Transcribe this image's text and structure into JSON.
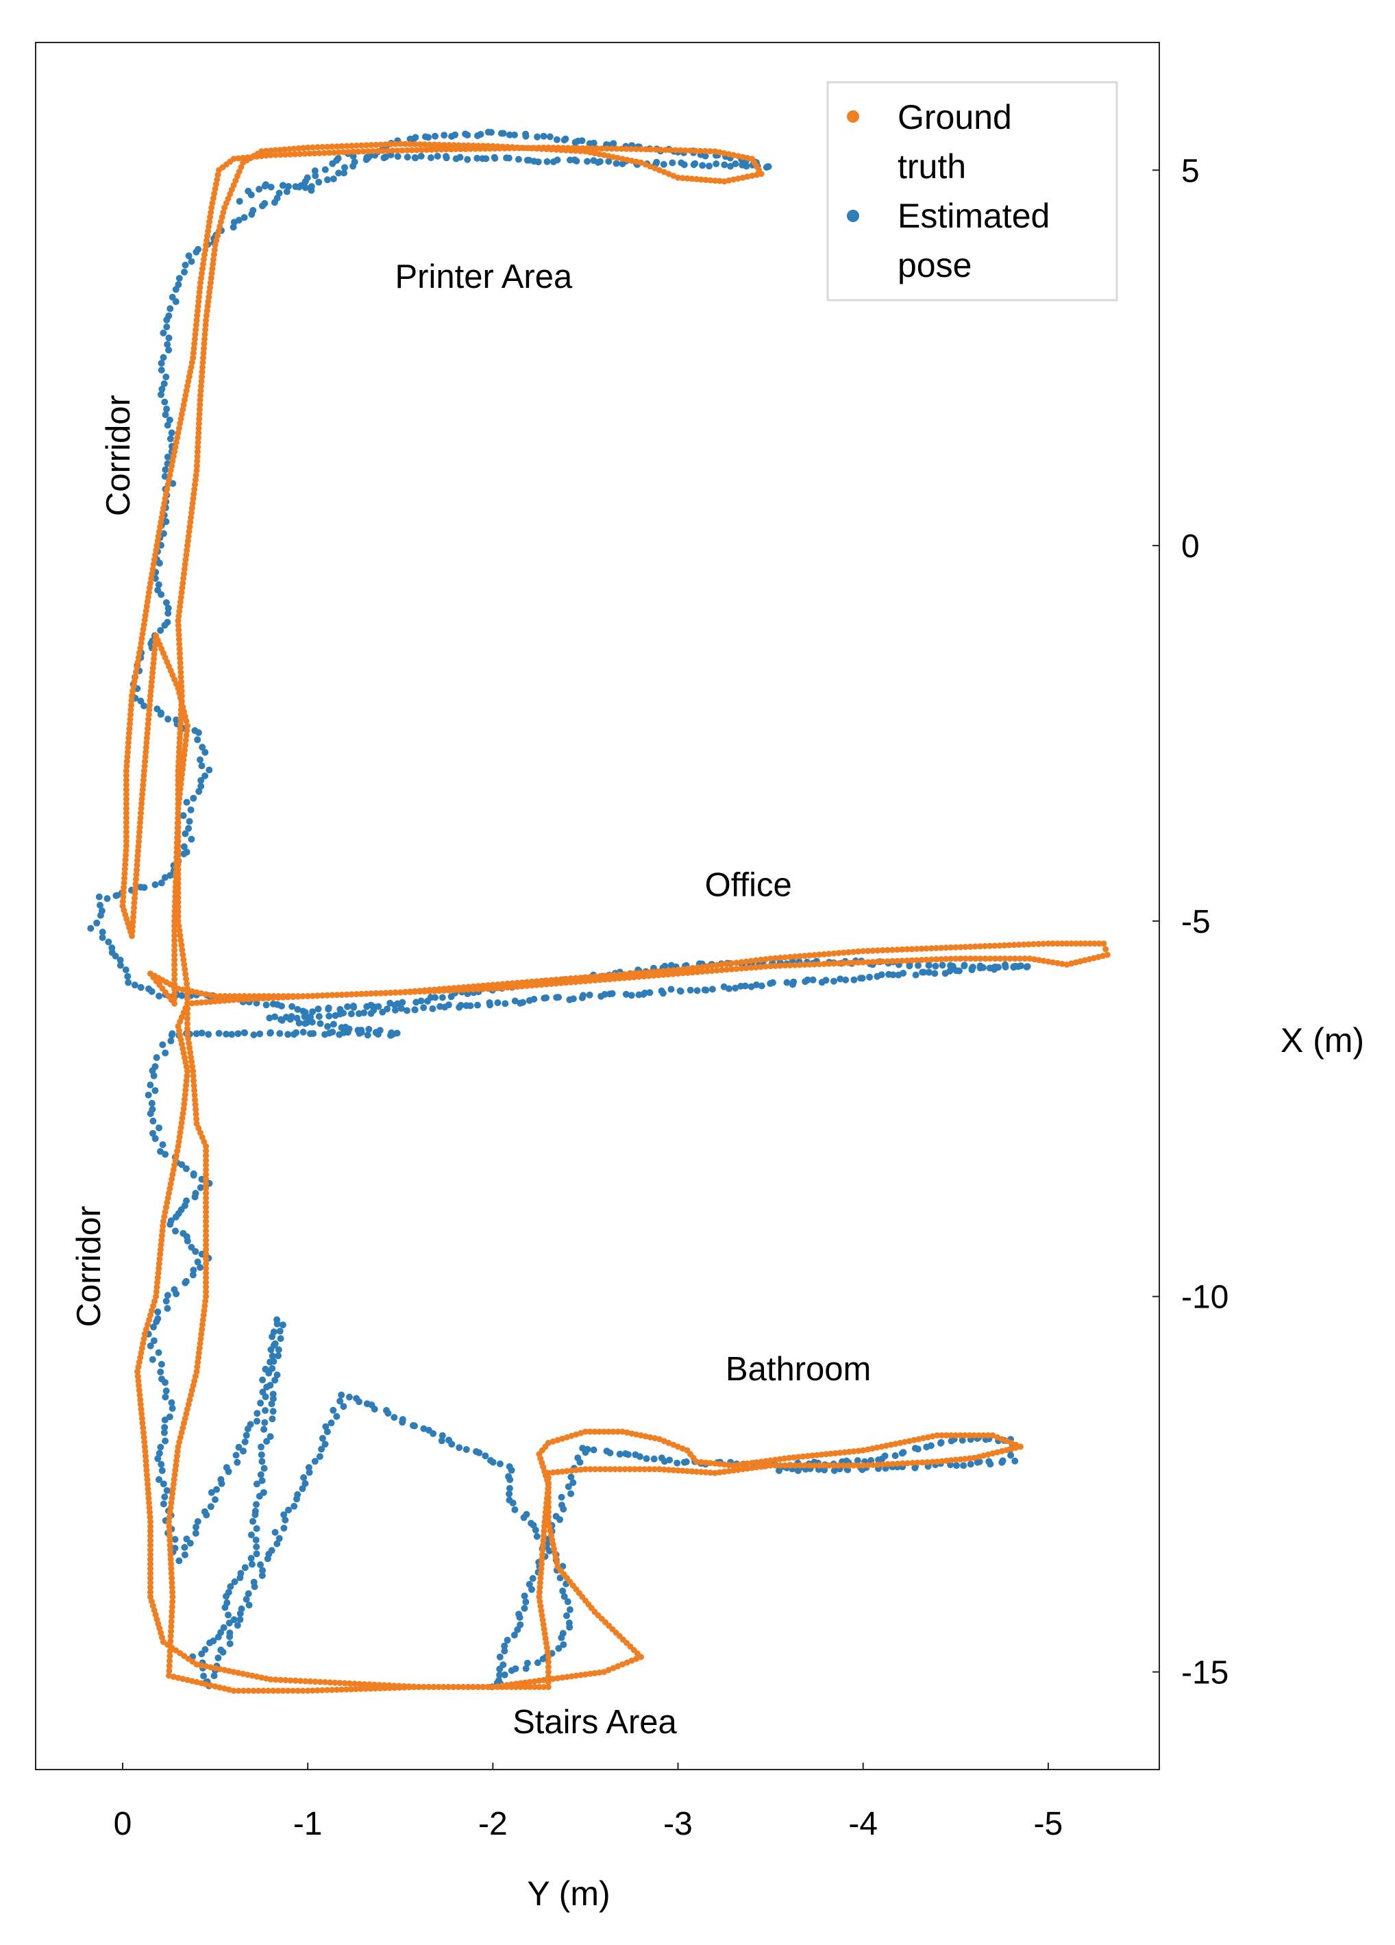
{
  "chart_data": {
    "type": "scatter",
    "title": "",
    "xlabel": "Y (m)",
    "ylabel": "X (m)",
    "xlim": [
      0.47,
      -5.6
    ],
    "ylim": [
      -16.3,
      6.7
    ],
    "x_ticks": [
      0,
      -1,
      -2,
      -3,
      -4,
      -5
    ],
    "x_tick_labels": [
      "0",
      "-1",
      "-2",
      "-3",
      "-4",
      "-5"
    ],
    "y_ticks": [
      5,
      0,
      -5,
      -10,
      -15
    ],
    "y_tick_labels": [
      "5",
      "0",
      "-5",
      "-10",
      "-15"
    ],
    "y_axis_side": "right",
    "grid": false,
    "legend_position": "top-right",
    "annotations": [
      {
        "text": "Printer Area",
        "x": -1.95,
        "y": 3.55,
        "rotation": 0
      },
      {
        "text": "Corridor",
        "x": 0.01,
        "y": 1.2,
        "rotation": -90
      },
      {
        "text": "Office",
        "x": -3.38,
        "y": -4.55,
        "rotation": 0
      },
      {
        "text": "Corridor",
        "x": 0.17,
        "y": -9.6,
        "rotation": -90
      },
      {
        "text": "Bathroom",
        "x": -3.65,
        "y": -11.0,
        "rotation": 0
      },
      {
        "text": "Stairs Area",
        "x": -2.55,
        "y": -15.7,
        "rotation": 0
      }
    ],
    "series": [
      {
        "name": "Ground truth",
        "color": "#F07F21",
        "marker_radius": 4.5,
        "jitter": 0,
        "points": [
          [
            -0.05,
            -5.2
          ],
          [
            -0.1,
            -3.5
          ],
          [
            -0.15,
            -2.0
          ],
          [
            -0.18,
            -1.2
          ],
          [
            -0.3,
            -1.9
          ],
          [
            -0.35,
            -2.4
          ],
          [
            -0.3,
            -3.5
          ],
          [
            -0.28,
            -5.0
          ],
          [
            -0.28,
            -6.1
          ],
          [
            -0.15,
            -5.7
          ],
          [
            -0.3,
            -5.9
          ],
          [
            -0.5,
            -6.0
          ],
          [
            -1.0,
            -6.0
          ],
          [
            -1.5,
            -5.95
          ],
          [
            -2.0,
            -5.85
          ],
          [
            -2.5,
            -5.75
          ],
          [
            -3.0,
            -5.65
          ],
          [
            -3.5,
            -5.5
          ],
          [
            -4.0,
            -5.4
          ],
          [
            -4.5,
            -5.35
          ],
          [
            -5.0,
            -5.3
          ],
          [
            -5.3,
            -5.3
          ],
          [
            -5.32,
            -5.45
          ],
          [
            -5.1,
            -5.58
          ],
          [
            -4.9,
            -5.5
          ],
          [
            -4.5,
            -5.5
          ],
          [
            -4.0,
            -5.55
          ],
          [
            -3.5,
            -5.6
          ],
          [
            -3.0,
            -5.7
          ],
          [
            -2.5,
            -5.8
          ],
          [
            -2.0,
            -5.9
          ],
          [
            -1.5,
            -5.95
          ],
          [
            -1.0,
            -6.0
          ],
          [
            -0.6,
            -6.05
          ],
          [
            -0.35,
            -6.1
          ],
          [
            -0.3,
            -6.4
          ],
          [
            -0.35,
            -7.0
          ],
          [
            -0.33,
            -7.5
          ],
          [
            -0.3,
            -8.0
          ],
          [
            -0.22,
            -9.0
          ],
          [
            -0.18,
            -10.0
          ],
          [
            -0.12,
            -10.5
          ],
          [
            -0.08,
            -11.0
          ],
          [
            -0.1,
            -11.5
          ],
          [
            -0.12,
            -12.0
          ],
          [
            -0.15,
            -13.0
          ],
          [
            -0.15,
            -14.0
          ],
          [
            -0.22,
            -14.6
          ],
          [
            -0.4,
            -14.9
          ],
          [
            -0.8,
            -15.1
          ],
          [
            -1.2,
            -15.15
          ],
          [
            -1.6,
            -15.2
          ],
          [
            -2.0,
            -15.2
          ],
          [
            -2.3,
            -15.2
          ],
          [
            -2.3,
            -14.8
          ],
          [
            -2.25,
            -14.0
          ],
          [
            -2.28,
            -13.0
          ],
          [
            -2.3,
            -12.5
          ],
          [
            -2.25,
            -12.1
          ],
          [
            -2.3,
            -11.95
          ],
          [
            -2.5,
            -11.8
          ],
          [
            -2.7,
            -11.8
          ],
          [
            -2.9,
            -11.9
          ],
          [
            -3.05,
            -12.05
          ],
          [
            -3.1,
            -12.2
          ],
          [
            -3.3,
            -12.25
          ],
          [
            -3.6,
            -12.15
          ],
          [
            -4.0,
            -12.05
          ],
          [
            -4.4,
            -11.85
          ],
          [
            -4.7,
            -11.85
          ],
          [
            -4.85,
            -12.0
          ],
          [
            -4.6,
            -12.15
          ],
          [
            -4.4,
            -12.2
          ],
          [
            -4.0,
            -12.25
          ],
          [
            -3.5,
            -12.25
          ],
          [
            -3.2,
            -12.35
          ],
          [
            -2.9,
            -12.3
          ],
          [
            -2.5,
            -12.3
          ],
          [
            -2.3,
            -12.35
          ],
          [
            -2.3,
            -13.0
          ],
          [
            -2.35,
            -13.6
          ],
          [
            -2.55,
            -14.2
          ],
          [
            -2.8,
            -14.8
          ],
          [
            -2.6,
            -15.0
          ],
          [
            -2.3,
            -15.1
          ],
          [
            -2.0,
            -15.2
          ],
          [
            -1.6,
            -15.2
          ],
          [
            -1.0,
            -15.25
          ],
          [
            -0.6,
            -15.25
          ],
          [
            -0.25,
            -15.05
          ],
          [
            -0.27,
            -14.0
          ],
          [
            -0.25,
            -13.0
          ],
          [
            -0.3,
            -12.0
          ],
          [
            -0.4,
            -11.0
          ],
          [
            -0.45,
            -10.0
          ],
          [
            -0.45,
            -9.0
          ],
          [
            -0.45,
            -8.0
          ],
          [
            -0.4,
            -7.7
          ],
          [
            -0.38,
            -7.0
          ],
          [
            -0.35,
            -6.5
          ],
          [
            -0.35,
            -5.9
          ],
          [
            -0.3,
            -5.0
          ],
          [
            -0.3,
            -4.0
          ],
          [
            -0.3,
            -3.0
          ],
          [
            -0.32,
            -2.0
          ],
          [
            -0.3,
            -1.0
          ],
          [
            -0.35,
            0.0
          ],
          [
            -0.4,
            1.0
          ],
          [
            -0.42,
            2.0
          ],
          [
            -0.45,
            3.0
          ],
          [
            -0.5,
            4.0
          ],
          [
            -0.55,
            4.5
          ],
          [
            -0.6,
            4.8
          ],
          [
            -0.65,
            5.1
          ],
          [
            -0.75,
            5.25
          ],
          [
            -1.0,
            5.3
          ],
          [
            -1.5,
            5.35
          ],
          [
            -2.0,
            5.32
          ],
          [
            -2.5,
            5.25
          ],
          [
            -2.8,
            5.1
          ],
          [
            -3.0,
            4.9
          ],
          [
            -3.25,
            4.85
          ],
          [
            -3.45,
            4.95
          ],
          [
            -3.4,
            5.15
          ],
          [
            -3.2,
            5.25
          ],
          [
            -2.8,
            5.28
          ],
          [
            -2.3,
            5.3
          ],
          [
            -1.8,
            5.28
          ],
          [
            -1.3,
            5.25
          ],
          [
            -0.8,
            5.2
          ],
          [
            -0.6,
            5.15
          ],
          [
            -0.52,
            5.0
          ],
          [
            -0.48,
            4.5
          ],
          [
            -0.42,
            3.5
          ],
          [
            -0.38,
            2.5
          ],
          [
            -0.3,
            1.5
          ],
          [
            -0.22,
            0.5
          ],
          [
            -0.15,
            -0.5
          ],
          [
            -0.1,
            -1.3
          ],
          [
            -0.05,
            -2.0
          ],
          [
            -0.02,
            -3.0
          ],
          [
            -0.02,
            -4.0
          ],
          [
            0.0,
            -4.8
          ],
          [
            -0.05,
            -5.2
          ]
        ]
      },
      {
        "name": "Estimated pose",
        "color": "#2E7DB8",
        "marker_radius": 5,
        "jitter": 0.045,
        "points": [
          [
            -0.65,
            4.6
          ],
          [
            -0.75,
            4.8
          ],
          [
            -1.0,
            4.75
          ],
          [
            -1.5,
            5.4
          ],
          [
            -2.0,
            5.5
          ],
          [
            -2.6,
            5.35
          ],
          [
            -3.2,
            5.2
          ],
          [
            -3.5,
            5.05
          ],
          [
            -1.2,
            5.2
          ],
          [
            -0.55,
            4.2
          ],
          [
            -0.35,
            3.8
          ],
          [
            -0.25,
            3.0
          ],
          [
            -0.2,
            2.0
          ],
          [
            -0.25,
            1.5
          ],
          [
            -0.25,
            0.5
          ],
          [
            -0.18,
            -0.5
          ],
          [
            -0.25,
            -1.0
          ],
          [
            -0.1,
            -1.5
          ],
          [
            -0.05,
            -2.0
          ],
          [
            -0.4,
            -2.5
          ],
          [
            -0.45,
            -3.0
          ],
          [
            -0.35,
            -3.5
          ],
          [
            -0.35,
            -4.0
          ],
          [
            -0.2,
            -4.5
          ],
          [
            0.12,
            -4.7
          ],
          [
            0.15,
            -5.1
          ],
          [
            0.05,
            -5.4
          ],
          [
            -0.05,
            -5.8
          ],
          [
            -0.2,
            -6.0
          ],
          [
            -0.5,
            -6.0
          ],
          [
            -1.0,
            -6.2
          ],
          [
            -1.5,
            -6.1
          ],
          [
            -2.0,
            -5.9
          ],
          [
            -2.5,
            -5.75
          ],
          [
            -3.0,
            -5.6
          ],
          [
            -3.5,
            -5.55
          ],
          [
            -4.0,
            -5.55
          ],
          [
            -4.5,
            -5.6
          ],
          [
            -4.9,
            -5.6
          ],
          [
            -0.8,
            -6.3
          ],
          [
            -1.5,
            -6.5
          ],
          [
            -0.25,
            -6.5
          ],
          [
            -0.18,
            -7.0
          ],
          [
            -0.15,
            -7.5
          ],
          [
            -0.2,
            -8.0
          ],
          [
            -0.45,
            -8.5
          ],
          [
            -0.25,
            -9.0
          ],
          [
            -0.45,
            -9.5
          ],
          [
            -0.25,
            -10.0
          ],
          [
            -0.15,
            -10.5
          ],
          [
            -0.2,
            -11.0
          ],
          [
            -0.25,
            -11.5
          ],
          [
            -0.2,
            -12.0
          ],
          [
            -0.22,
            -12.5
          ],
          [
            -0.25,
            -13.0
          ],
          [
            -0.3,
            -13.5
          ],
          [
            -0.6,
            -12.2
          ],
          [
            -0.75,
            -11.5
          ],
          [
            -0.8,
            -10.8
          ],
          [
            -0.85,
            -10.3
          ],
          [
            -0.7,
            -13.5
          ],
          [
            -0.55,
            -14.0
          ],
          [
            -0.6,
            -14.3
          ],
          [
            -0.4,
            -14.8
          ],
          [
            -0.45,
            -15.2
          ],
          [
            -1.2,
            -11.3
          ],
          [
            -2.1,
            -12.3
          ],
          [
            -2.1,
            -12.7
          ],
          [
            -2.2,
            -13.0
          ],
          [
            -2.35,
            -13.5
          ],
          [
            -2.4,
            -14.0
          ],
          [
            -2.4,
            -14.5
          ],
          [
            -2.3,
            -14.8
          ],
          [
            -2.1,
            -15.0
          ],
          [
            -2.0,
            -15.2
          ],
          [
            -2.5,
            -12.0
          ],
          [
            -2.7,
            -12.1
          ],
          [
            -3.0,
            -12.2
          ],
          [
            -3.5,
            -12.25
          ],
          [
            -4.0,
            -12.2
          ],
          [
            -4.5,
            -11.9
          ],
          [
            -4.8,
            -11.9
          ],
          [
            -4.8,
            -12.2
          ],
          [
            -4.0,
            -12.3
          ],
          [
            -3.5,
            -12.3
          ]
        ]
      }
    ]
  }
}
